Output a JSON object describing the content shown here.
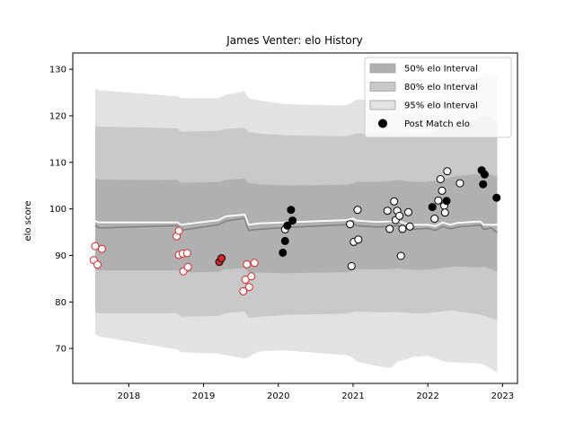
{
  "chart_data": {
    "type": "line",
    "title": "James Venter: elo History",
    "xlabel": "",
    "ylabel": "elo score",
    "xlim": [
      2017.25,
      2023.2
    ],
    "ylim": [
      62.5,
      133.5
    ],
    "x_ticks": [
      2018,
      2019,
      2020,
      2021,
      2022,
      2023
    ],
    "y_ticks": [
      70,
      80,
      90,
      100,
      110,
      120,
      130
    ],
    "grid": false,
    "legend_placement": "top-right",
    "legend": [
      {
        "label": "50% elo Interval",
        "kind": "band",
        "color": "#b0b0b0"
      },
      {
        "label": "80% elo Interval",
        "kind": "band",
        "color": "#c8c8c8"
      },
      {
        "label": "95% elo Interval",
        "kind": "band",
        "color": "#e2e2e2"
      },
      {
        "label": "Post Match elo",
        "kind": "marker",
        "color": "#000000"
      }
    ],
    "colors": {
      "band50": "#b0b0b0",
      "band80": "#c8c8c8",
      "band95": "#e2e2e2",
      "median_line": "#7f7f7f",
      "mean_line": "#ffffff",
      "point_fill": "#ffffff",
      "point_edge_black": "#000000",
      "point_edge_red": "#d62728",
      "point_fill_black": "#000000",
      "point_fill_red": "#d62728"
    },
    "band_x": [
      2017.55,
      2017.6,
      2018.65,
      2018.7,
      2019.2,
      2019.3,
      2019.55,
      2019.6,
      2019.75,
      2020.1,
      2020.9,
      2021.0,
      2021.05,
      2021.3,
      2021.5,
      2021.6,
      2021.7,
      2021.8,
      2022.0,
      2022.2,
      2022.3,
      2022.4,
      2022.7,
      2022.75,
      2022.85,
      2022.93
    ],
    "band95_upper": [
      125.8,
      125.5,
      124.2,
      123.8,
      123.8,
      124.5,
      125.3,
      123.8,
      123.3,
      122.5,
      122.2,
      123.0,
      123.5,
      123.4,
      123.4,
      123.6,
      123.4,
      123.2,
      123.3,
      124.6,
      125.4,
      126.2,
      128.6,
      129.2,
      128.9,
      128.6
    ],
    "band80_upper": [
      117.8,
      117.7,
      117.3,
      116.6,
      116.8,
      117.2,
      117.4,
      116.5,
      116.2,
      115.8,
      115.6,
      116.0,
      116.2,
      116.1,
      116.2,
      116.4,
      116.2,
      116.0,
      116.0,
      117.2,
      117.8,
      118.2,
      119.6,
      120.2,
      119.6,
      119.1
    ],
    "band50_upper": [
      106.5,
      106.3,
      106.2,
      105.6,
      105.8,
      106.2,
      106.5,
      105.6,
      105.3,
      105.0,
      105.2,
      105.5,
      105.8,
      105.8,
      106.0,
      106.2,
      106.0,
      105.8,
      105.8,
      106.3,
      106.8,
      107.1,
      107.5,
      107.8,
      107.3,
      107.0
    ],
    "band50_lower": [
      87.0,
      86.8,
      86.8,
      86.3,
      86.5,
      87.0,
      87.3,
      86.3,
      86.3,
      86.2,
      86.4,
      86.8,
      87.1,
      87.0,
      87.1,
      87.2,
      87.0,
      86.9,
      86.9,
      87.3,
      87.5,
      87.6,
      87.4,
      87.6,
      87.0,
      86.5
    ],
    "band80_lower": [
      77.8,
      77.6,
      77.6,
      76.8,
      77.0,
      77.6,
      78.0,
      76.6,
      76.8,
      77.2,
      77.5,
      77.8,
      78.0,
      77.8,
      77.8,
      77.9,
      77.7,
      77.6,
      77.6,
      78.0,
      78.2,
      78.0,
      77.3,
      77.0,
      76.5,
      76.0
    ],
    "band95_lower": [
      73.2,
      72.6,
      69.8,
      69.2,
      68.9,
      68.6,
      67.8,
      68.2,
      69.4,
      69.6,
      68.6,
      68.0,
      67.2,
      66.3,
      65.8,
      67.2,
      67.6,
      68.2,
      68.4,
      67.3,
      67.1,
      67.0,
      66.8,
      66.5,
      65.6,
      64.8
    ],
    "median_line": {
      "name": "",
      "x": [
        2017.55,
        2017.6,
        2018.65,
        2018.7,
        2019.2,
        2019.3,
        2019.55,
        2019.6,
        2019.75,
        2020.1,
        2020.9,
        2021.0,
        2021.05,
        2021.3,
        2021.5,
        2021.6,
        2021.7,
        2021.8,
        2022.0,
        2022.1,
        2022.2,
        2022.3,
        2022.4,
        2022.7,
        2022.75,
        2022.85,
        2022.93
      ],
      "y": [
        96.4,
        95.9,
        96.4,
        95.4,
        96.6,
        97.4,
        98.0,
        95.4,
        95.6,
        96.0,
        96.6,
        96.9,
        96.4,
        96.1,
        96.2,
        96.4,
        95.9,
        95.6,
        95.8,
        95.4,
        96.2,
        95.7,
        96.1,
        96.5,
        95.6,
        95.9,
        94.9
      ]
    },
    "mean_line": {
      "name": "",
      "x": [
        2017.55,
        2017.6,
        2018.65,
        2018.7,
        2019.2,
        2019.3,
        2019.55,
        2019.6,
        2019.75,
        2020.1,
        2020.9,
        2021.0,
        2021.05,
        2021.3,
        2021.5,
        2021.6,
        2021.7,
        2021.8,
        2022.0,
        2022.1,
        2022.2,
        2022.3,
        2022.4,
        2022.7,
        2022.75,
        2022.85,
        2022.93
      ],
      "y": [
        97.4,
        97.1,
        97.1,
        96.6,
        97.6,
        98.4,
        98.8,
        96.6,
        96.9,
        97.1,
        97.6,
        97.9,
        97.5,
        97.2,
        97.3,
        97.4,
        96.9,
        96.6,
        96.6,
        96.3,
        97.1,
        96.6,
        97.0,
        97.3,
        96.6,
        96.6,
        96.6
      ]
    },
    "series": [
      {
        "name": "Post Match elo",
        "points": [
          {
            "x": 2017.55,
            "y": 92.0,
            "style": "red_open"
          },
          {
            "x": 2017.53,
            "y": 89.0,
            "style": "red_open"
          },
          {
            "x": 2017.58,
            "y": 88.0,
            "style": "red_open"
          },
          {
            "x": 2017.64,
            "y": 91.4,
            "style": "red_open"
          },
          {
            "x": 2018.64,
            "y": 94.1,
            "style": "red_open"
          },
          {
            "x": 2018.67,
            "y": 95.3,
            "style": "red_open"
          },
          {
            "x": 2018.67,
            "y": 90.1,
            "style": "red_open"
          },
          {
            "x": 2018.72,
            "y": 90.4,
            "style": "red_open"
          },
          {
            "x": 2018.78,
            "y": 90.5,
            "style": "red_open"
          },
          {
            "x": 2018.73,
            "y": 86.6,
            "style": "red_open"
          },
          {
            "x": 2018.79,
            "y": 87.5,
            "style": "red_open"
          },
          {
            "x": 2019.21,
            "y": 88.6,
            "style": "red_filled"
          },
          {
            "x": 2019.24,
            "y": 89.4,
            "style": "red_filled"
          },
          {
            "x": 2019.53,
            "y": 82.3,
            "style": "red_open"
          },
          {
            "x": 2019.56,
            "y": 84.8,
            "style": "red_open"
          },
          {
            "x": 2019.58,
            "y": 88.1,
            "style": "red_open"
          },
          {
            "x": 2019.61,
            "y": 83.2,
            "style": "red_open"
          },
          {
            "x": 2019.64,
            "y": 85.5,
            "style": "red_open"
          },
          {
            "x": 2019.68,
            "y": 88.4,
            "style": "red_open"
          },
          {
            "x": 2020.06,
            "y": 90.6,
            "style": "black_filled"
          },
          {
            "x": 2020.09,
            "y": 93.1,
            "style": "black_filled"
          },
          {
            "x": 2020.09,
            "y": 95.6,
            "style": "black_open"
          },
          {
            "x": 2020.12,
            "y": 96.4,
            "style": "black_filled"
          },
          {
            "x": 2020.17,
            "y": 99.8,
            "style": "black_filled"
          },
          {
            "x": 2020.19,
            "y": 97.5,
            "style": "black_filled"
          },
          {
            "x": 2020.96,
            "y": 96.7,
            "style": "black_open"
          },
          {
            "x": 2020.98,
            "y": 87.7,
            "style": "black_open"
          },
          {
            "x": 2021.01,
            "y": 92.9,
            "style": "black_open"
          },
          {
            "x": 2021.06,
            "y": 99.8,
            "style": "black_open"
          },
          {
            "x": 2021.07,
            "y": 93.4,
            "style": "black_open"
          },
          {
            "x": 2021.46,
            "y": 99.6,
            "style": "black_open"
          },
          {
            "x": 2021.49,
            "y": 95.7,
            "style": "black_open"
          },
          {
            "x": 2021.55,
            "y": 101.6,
            "style": "black_open"
          },
          {
            "x": 2021.57,
            "y": 97.6,
            "style": "black_open"
          },
          {
            "x": 2021.59,
            "y": 99.6,
            "style": "black_open"
          },
          {
            "x": 2021.62,
            "y": 98.5,
            "style": "black_open"
          },
          {
            "x": 2021.64,
            "y": 89.9,
            "style": "black_open"
          },
          {
            "x": 2021.66,
            "y": 95.7,
            "style": "black_open"
          },
          {
            "x": 2021.74,
            "y": 99.3,
            "style": "black_open"
          },
          {
            "x": 2021.76,
            "y": 96.2,
            "style": "black_open"
          },
          {
            "x": 2022.06,
            "y": 100.4,
            "style": "black_filled"
          },
          {
            "x": 2022.09,
            "y": 97.9,
            "style": "black_open"
          },
          {
            "x": 2022.14,
            "y": 101.8,
            "style": "black_open"
          },
          {
            "x": 2022.17,
            "y": 106.4,
            "style": "black_open"
          },
          {
            "x": 2022.19,
            "y": 103.9,
            "style": "black_open"
          },
          {
            "x": 2022.22,
            "y": 100.7,
            "style": "black_open"
          },
          {
            "x": 2022.23,
            "y": 99.2,
            "style": "black_open"
          },
          {
            "x": 2022.25,
            "y": 101.7,
            "style": "black_filled"
          },
          {
            "x": 2022.26,
            "y": 108.1,
            "style": "black_open"
          },
          {
            "x": 2022.43,
            "y": 105.5,
            "style": "black_open"
          },
          {
            "x": 2022.72,
            "y": 108.3,
            "style": "black_filled"
          },
          {
            "x": 2022.76,
            "y": 107.4,
            "style": "black_filled"
          },
          {
            "x": 2022.74,
            "y": 105.3,
            "style": "black_filled"
          },
          {
            "x": 2022.92,
            "y": 102.4,
            "style": "black_filled"
          }
        ]
      }
    ]
  }
}
